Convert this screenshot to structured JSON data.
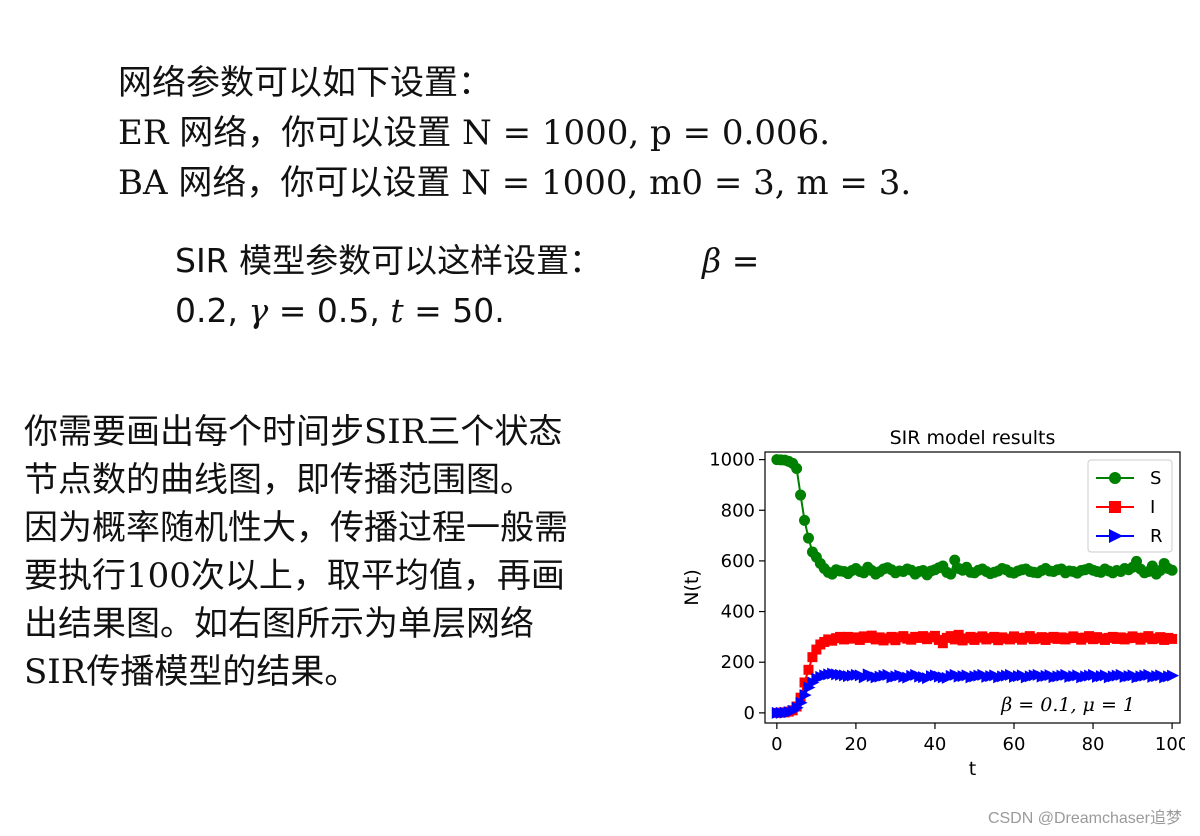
{
  "network_params": {
    "line1": "网络参数可以如下设置：",
    "line2": "ER 网络，你可以设置 N = 1000, p = 0.006.",
    "line3": "BA 网络，你可以设置 N = 1000, m0 = 3, m = 3."
  },
  "sir_params": {
    "intro": "SIR 模型参数可以这样设置：",
    "beta_sym": "β",
    "eq": "=",
    "beta_val": "0.2",
    "sep": ",",
    "gamma_sym": "γ",
    "gamma_val": "0.5",
    "t_sym": "t",
    "t_val": "50."
  },
  "description": {
    "line1": "你需要画出每个时间步SIR三个状态",
    "line2": "节点数的曲线图，即传播范围图。",
    "line3": "因为概率随机性大，传播过程一般需",
    "line4": "要执行100次以上，取平均值，再画",
    "line5": "出结果图。如右图所示为单层网络",
    "line6": "SIR传播模型的结果。"
  },
  "watermark": "CSDN @Dreamchaser追梦",
  "chart_data": {
    "type": "line",
    "title": "SIR model results",
    "xlabel": "t",
    "ylabel": "N(t)",
    "xlim": [
      -3,
      102
    ],
    "ylim": [
      -40,
      1030
    ],
    "xticks": [
      0,
      20,
      40,
      60,
      80,
      100
    ],
    "yticks": [
      0,
      200,
      400,
      600,
      800,
      1000
    ],
    "annotation": "β = 0.1, μ = 1",
    "legend_position": "top-right",
    "grid": false,
    "x": [
      0,
      1,
      2,
      3,
      4,
      5,
      6,
      7,
      8,
      9,
      10,
      11,
      12,
      13,
      14,
      15,
      16,
      17,
      18,
      19,
      20,
      21,
      22,
      23,
      24,
      25,
      26,
      27,
      28,
      29,
      30,
      31,
      32,
      33,
      34,
      35,
      36,
      37,
      38,
      39,
      40,
      41,
      42,
      43,
      44,
      45,
      46,
      47,
      48,
      49,
      50,
      51,
      52,
      53,
      54,
      55,
      56,
      57,
      58,
      59,
      60,
      61,
      62,
      63,
      64,
      65,
      66,
      67,
      68,
      69,
      70,
      71,
      72,
      73,
      74,
      75,
      76,
      77,
      78,
      79,
      80,
      81,
      82,
      83,
      84,
      85,
      86,
      87,
      88,
      89,
      90,
      91,
      92,
      93,
      94,
      95,
      96,
      97,
      98,
      99,
      100
    ],
    "series": [
      {
        "name": "S",
        "color": "#008000",
        "marker": "circle",
        "values": [
          1000,
          999,
          998,
          993,
          985,
          965,
          860,
          760,
          690,
          635,
          615,
          590,
          570,
          555,
          548,
          565,
          560,
          558,
          550,
          562,
          570,
          558,
          553,
          575,
          562,
          548,
          557,
          568,
          573,
          565,
          553,
          560,
          558,
          568,
          563,
          548,
          558,
          562,
          545,
          560,
          565,
          573,
          580,
          555,
          548,
          603,
          570,
          563,
          575,
          555,
          553,
          563,
          568,
          558,
          550,
          555,
          560,
          570,
          565,
          555,
          552,
          560,
          565,
          568,
          558,
          555,
          553,
          562,
          570,
          560,
          558,
          565,
          568,
          553,
          560,
          558,
          552,
          562,
          565,
          570,
          563,
          558,
          555,
          568,
          560,
          553,
          562,
          558,
          570,
          565,
          575,
          598,
          568,
          553,
          558,
          580,
          548,
          562,
          590,
          570,
          563
        ]
      },
      {
        "name": "I",
        "color": "#ff0000",
        "marker": "square",
        "values": [
          0,
          1,
          2,
          5,
          10,
          25,
          60,
          120,
          170,
          220,
          250,
          270,
          280,
          290,
          285,
          295,
          300,
          290,
          300,
          293,
          298,
          288,
          302,
          296,
          305,
          290,
          298,
          286,
          294,
          300,
          287,
          298,
          303,
          293,
          289,
          300,
          296,
          303,
          291,
          298,
          304,
          288,
          275,
          296,
          303,
          290,
          308,
          286,
          294,
          300,
          288,
          297,
          302,
          290,
          295,
          300,
          287,
          298,
          293,
          290,
          302,
          296,
          289,
          297,
          303,
          291,
          294,
          299,
          288,
          296,
          300,
          292,
          298,
          290,
          295,
          302,
          296,
          289,
          297,
          303,
          291,
          299,
          294,
          288,
          296,
          300,
          292,
          298,
          290,
          295,
          302,
          296,
          289,
          297,
          303,
          291,
          294,
          299,
          288,
          296,
          292
        ]
      },
      {
        "name": "R",
        "color": "#0000ff",
        "marker": "triangle-right",
        "values": [
          0,
          0,
          1,
          3,
          8,
          20,
          40,
          70,
          100,
          120,
          135,
          142,
          148,
          152,
          155,
          152,
          150,
          148,
          145,
          147,
          150,
          148,
          140,
          152,
          145,
          140,
          143,
          147,
          150,
          140,
          144,
          148,
          142,
          139,
          146,
          150,
          143,
          141,
          137,
          145,
          148,
          143,
          140,
          138,
          146,
          150,
          143,
          145,
          148,
          140,
          144,
          147,
          150,
          142,
          145,
          148,
          140,
          144,
          147,
          150,
          142,
          145,
          148,
          140,
          144,
          148,
          150,
          143,
          146,
          149,
          141,
          144,
          147,
          150,
          142,
          145,
          148,
          140,
          144,
          147,
          150,
          142,
          145,
          148,
          140,
          144,
          147,
          150,
          142,
          145,
          148,
          140,
          144,
          147,
          150,
          142,
          145,
          148,
          140,
          144,
          147
        ]
      }
    ]
  }
}
